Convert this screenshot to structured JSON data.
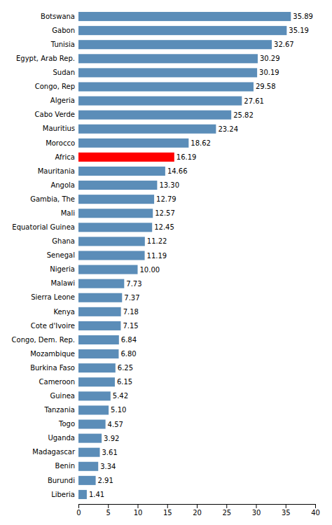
{
  "chart_data": {
    "type": "bar",
    "orientation": "horizontal",
    "categories": [
      "Botswana",
      "Gabon",
      "Tunisia",
      "Egypt, Arab Rep.",
      "Sudan",
      "Congo, Rep",
      "Algeria",
      "Cabo Verde",
      "Mauritius",
      "Morocco",
      "Africa",
      "Mauritania",
      "Angola",
      "Gambia, The",
      "Mali",
      "Equatorial Guinea",
      "Ghana",
      "Senegal",
      "Nigeria",
      "Malawi",
      "Sierra Leone",
      "Kenya",
      "Cote d'Ivoire",
      "Congo, Dem. Rep.",
      "Mozambique",
      "Burkina Faso",
      "Cameroon",
      "Guinea",
      "Tanzania",
      "Togo",
      "Uganda",
      "Madagascar",
      "Benin",
      "Burundi",
      "Liberia"
    ],
    "values": [
      35.89,
      35.19,
      32.67,
      30.29,
      30.19,
      29.58,
      27.61,
      25.82,
      23.24,
      18.62,
      16.19,
      14.66,
      13.3,
      12.79,
      12.57,
      12.45,
      11.22,
      11.19,
      10.0,
      7.73,
      7.37,
      7.18,
      7.15,
      6.84,
      6.8,
      6.25,
      6.15,
      5.42,
      5.1,
      4.57,
      3.92,
      3.61,
      3.34,
      2.91,
      1.41
    ],
    "value_labels": [
      "35.89",
      "35.19",
      "32.67",
      "30.29",
      "30.19",
      "29.58",
      "27.61",
      "25.82",
      "23.24",
      "18.62",
      "16.19",
      "14.66",
      "13.30",
      "12.79",
      "12.57",
      "12.45",
      "11.22",
      "11.19",
      "10.00",
      "7.73",
      "7.37",
      "7.18",
      "7.15",
      "6.84",
      "6.80",
      "6.25",
      "6.15",
      "5.42",
      "5.10",
      "4.57",
      "3.92",
      "3.61",
      "3.34",
      "2.91",
      "1.41"
    ],
    "colors": [
      "#5B8DB8",
      "#5B8DB8",
      "#5B8DB8",
      "#5B8DB8",
      "#5B8DB8",
      "#5B8DB8",
      "#5B8DB8",
      "#5B8DB8",
      "#5B8DB8",
      "#5B8DB8",
      "#FF0000",
      "#5B8DB8",
      "#5B8DB8",
      "#5B8DB8",
      "#5B8DB8",
      "#5B8DB8",
      "#5B8DB8",
      "#5B8DB8",
      "#5B8DB8",
      "#5B8DB8",
      "#5B8DB8",
      "#5B8DB8",
      "#5B8DB8",
      "#5B8DB8",
      "#5B8DB8",
      "#5B8DB8",
      "#5B8DB8",
      "#5B8DB8",
      "#5B8DB8",
      "#5B8DB8",
      "#5B8DB8",
      "#5B8DB8",
      "#5B8DB8",
      "#5B8DB8",
      "#5B8DB8"
    ],
    "xlim": [
      0,
      40
    ],
    "xticks": [
      0,
      5,
      10,
      15,
      20,
      25,
      30,
      35,
      40
    ],
    "grid": false,
    "data_labels": true
  }
}
